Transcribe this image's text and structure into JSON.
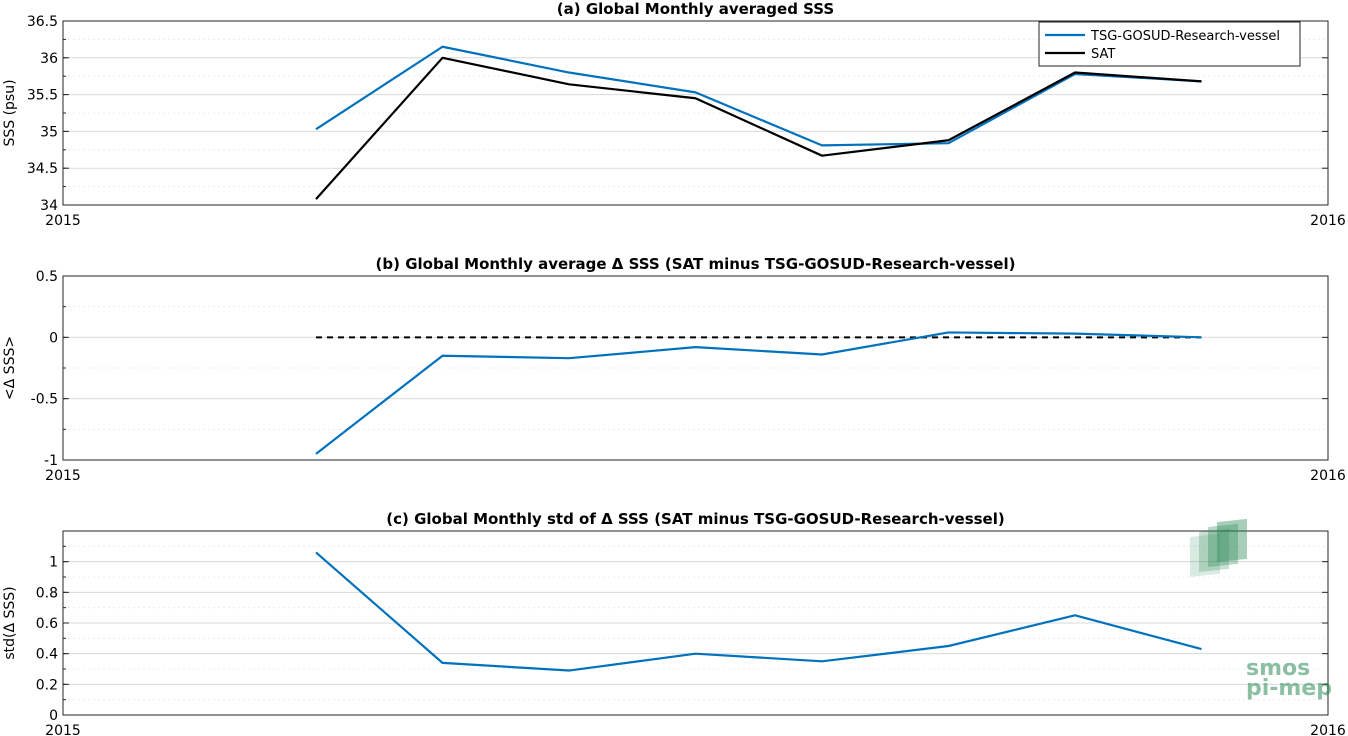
{
  "chart_data": [
    {
      "type": "line",
      "title": "(a) Global Monthly averaged SSS",
      "xlabel": "",
      "ylabel": "SSS (psu)",
      "xlim": [
        2015,
        2016
      ],
      "ylim": [
        34,
        36.5
      ],
      "x_ticks": [
        "2015",
        "2016"
      ],
      "y_ticks": [
        "34",
        "34.5",
        "35",
        "35.5",
        "36",
        "36.5"
      ],
      "grid": true,
      "legend_position": "top-right",
      "x": [
        2015.2,
        2015.3,
        2015.4,
        2015.5,
        2015.6,
        2015.7,
        2015.8,
        2015.9
      ],
      "series": [
        {
          "name": "TSG-GOSUD-Research-vessel",
          "color": "#0072BD",
          "values": [
            35.03,
            36.15,
            35.8,
            35.53,
            34.81,
            34.84,
            35.78,
            35.68
          ]
        },
        {
          "name": "SAT",
          "color": "#000000",
          "values": [
            34.08,
            36.0,
            35.64,
            35.45,
            34.67,
            34.88,
            35.8,
            35.68
          ]
        }
      ]
    },
    {
      "type": "line",
      "title": "(b) Global Monthly average Δ SSS (SAT minus TSG-GOSUD-Research-vessel)",
      "xlabel": "",
      "ylabel": "<Δ SSS>",
      "xlim": [
        2015,
        2016
      ],
      "ylim": [
        -1,
        0.5
      ],
      "x_ticks": [
        "2015",
        "2016"
      ],
      "y_ticks": [
        "-1",
        "-0.5",
        "0",
        "0.5"
      ],
      "grid": true,
      "x": [
        2015.2,
        2015.3,
        2015.4,
        2015.5,
        2015.6,
        2015.7,
        2015.8,
        2015.9
      ],
      "series": [
        {
          "color": "#0072BD",
          "values": [
            -0.95,
            -0.15,
            -0.17,
            -0.08,
            -0.14,
            0.04,
            0.03,
            0.0
          ]
        }
      ],
      "reference_line": {
        "value": 0,
        "style": "dashed",
        "color": "#000000",
        "x": [
          2015.2,
          2015.9
        ]
      }
    },
    {
      "type": "line",
      "title": "(c) Global Monthly std of Δ SSS (SAT minus TSG-GOSUD-Research-vessel)",
      "xlabel": "",
      "ylabel": "std(Δ SSS)",
      "xlim": [
        2015,
        2016
      ],
      "ylim": [
        0,
        1.2
      ],
      "x_ticks": [
        "2015",
        "2016"
      ],
      "y_ticks": [
        "0",
        "0.2",
        "0.4",
        "0.6",
        "0.8",
        "1"
      ],
      "grid": true,
      "x": [
        2015.2,
        2015.3,
        2015.4,
        2015.5,
        2015.6,
        2015.7,
        2015.8,
        2015.9
      ],
      "series": [
        {
          "color": "#0072BD",
          "values": [
            1.06,
            0.34,
            0.29,
            0.4,
            0.35,
            0.45,
            0.65,
            0.43
          ]
        }
      ]
    }
  ],
  "logo": {
    "line1": "smos",
    "line2": "pi-mep",
    "color": "#2e8b57"
  }
}
